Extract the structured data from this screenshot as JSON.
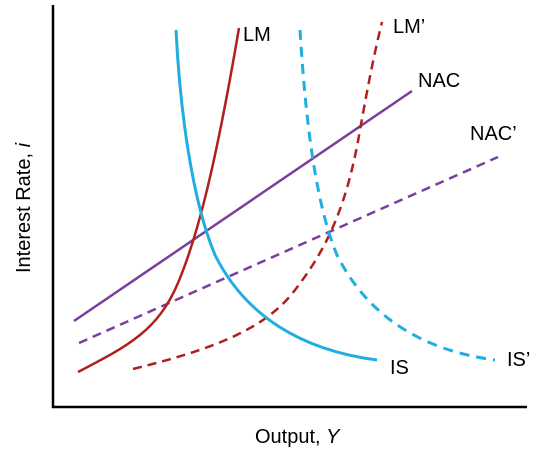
{
  "axes": {
    "x_label": "Output, ",
    "x_label_var": "Y",
    "y_label": "Interest Rate, ",
    "y_label_var": "i"
  },
  "curves": {
    "lm": {
      "label": "LM",
      "color": "#b01e1e",
      "style": "solid"
    },
    "lm_prime": {
      "label": "LM’",
      "color": "#b01e1e",
      "style": "dashed"
    },
    "nac": {
      "label": "NAC",
      "color": "#7a3e9d",
      "style": "solid"
    },
    "nac_prime": {
      "label": "NAC’",
      "color": "#7a3e9d",
      "style": "dashed"
    },
    "is": {
      "label": "IS",
      "color": "#20aee0",
      "style": "solid"
    },
    "is_prime": {
      "label": "IS’",
      "color": "#20aee0",
      "style": "dashed"
    }
  },
  "axis_color": "#000000"
}
